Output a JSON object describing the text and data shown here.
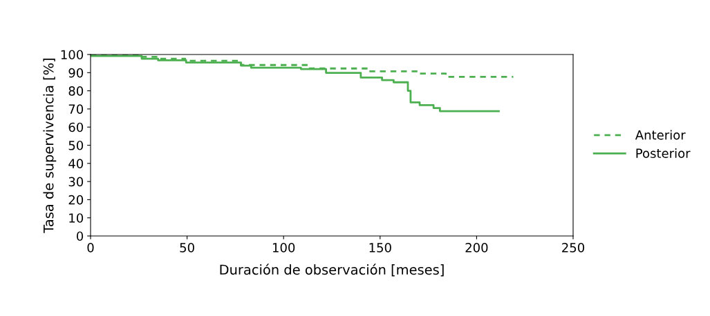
{
  "chart_data": {
    "type": "step",
    "xlabel": "Duración de observación [meses]",
    "ylabel": "Tasa de supervivencia [%]",
    "xlim": [
      0,
      250
    ],
    "xticks": [
      0,
      50,
      100,
      150,
      200,
      250
    ],
    "ylim": [
      0,
      100
    ],
    "yticks": [
      0,
      10,
      20,
      30,
      40,
      50,
      60,
      70,
      80,
      90,
      100
    ],
    "grid": false,
    "legend": "right",
    "marker": "none",
    "series": [
      {
        "name": "Anterior",
        "color": "#4caf50",
        "line_style": "dashed",
        "x": [
          0,
          26.5,
          35,
          49,
          78,
          113,
          143.6,
          170.5,
          184,
          219
        ],
        "values": [
          100,
          98.7,
          97.7,
          96.5,
          94.2,
          92.3,
          90.7,
          89.5,
          87.7,
          87.7
        ]
      },
      {
        "name": "Posterior",
        "color": "#4caf50",
        "line_style": "solid",
        "x": [
          0,
          26.5,
          35,
          49.5,
          77.9,
          83.2,
          109,
          122,
          140,
          151,
          157,
          164.4,
          165.8,
          170.5,
          177.7,
          181,
          211.5
        ],
        "values": [
          99.2,
          97.7,
          96.8,
          95.6,
          93.9,
          92.7,
          92.0,
          89.9,
          87.3,
          85.9,
          84.7,
          80,
          73.6,
          72.1,
          70.5,
          68.8,
          68.8
        ]
      }
    ]
  }
}
